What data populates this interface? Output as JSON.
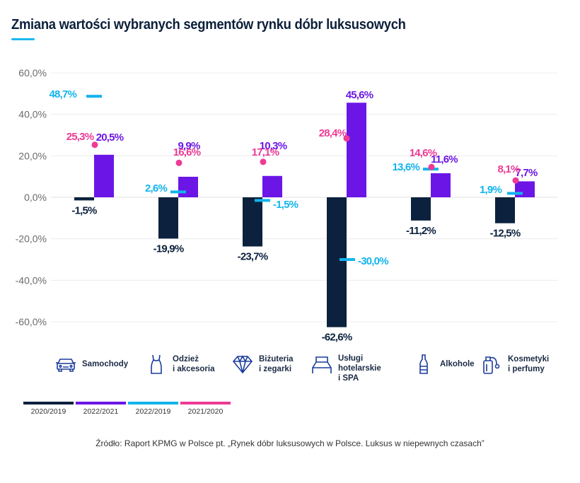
{
  "title": "Zmiana wartości wybranych segmentów rynku dóbr luksusowych",
  "colors": {
    "s2020_2019": "#0c213d",
    "s2022_2021": "#6b16e6",
    "s2022_2019": "#13b4ec",
    "s2021_2020": "#ee3a95",
    "grid": "#ececec",
    "icon": "#1c3c9c"
  },
  "categories": [
    {
      "label": "Samochody",
      "icon": "car-icon"
    },
    {
      "label": "Odzież\ni akcesoria",
      "icon": "dress-icon"
    },
    {
      "label": "Biżuteria\ni zegarki",
      "icon": "diamond-icon"
    },
    {
      "label": "Usługi\nhotelarskie\n i SPA",
      "icon": "bed-icon"
    },
    {
      "label": "Alkohole",
      "icon": "bottle-icon"
    },
    {
      "label": "Kosmetyki\ni perfumy",
      "icon": "perfume-icon"
    }
  ],
  "legend": [
    {
      "label": "2020/2019",
      "color": "#0c213d"
    },
    {
      "label": "2022/2021",
      "color": "#6b16e6"
    },
    {
      "label": "2022/2019",
      "color": "#13b4ec"
    },
    {
      "label": "2021/2020",
      "color": "#ee3a95"
    }
  ],
  "source": "Źródło: Raport KPMG w Polsce pt. „Rynek dóbr luksusowych w Polsce. Luksus w niepewnych czasach”",
  "chart_data": {
    "type": "bar",
    "title": "Zmiana wartości wybranych segmentów rynku dóbr luksusowych",
    "xlabel": "",
    "ylabel": "",
    "ylim": [
      -60,
      60
    ],
    "yticks": [
      60,
      40,
      20,
      0,
      -20,
      -40,
      -60
    ],
    "ytick_labels": [
      "60,0%",
      "40,0%",
      "20,0%",
      "0,0%",
      "-20,0%",
      "-40,0%",
      "-60,0%"
    ],
    "grid": true,
    "legend_position": "bottom-left",
    "categories": [
      "Samochody",
      "Odzież i akcesoria",
      "Biżuteria i zegarki",
      "Usługi hotelarskie i SPA",
      "Alkohole",
      "Kosmetyki i perfumy"
    ],
    "series": [
      {
        "name": "2020/2019",
        "mark": "bar",
        "values": [
          -1.5,
          -19.9,
          -23.7,
          -62.6,
          -11.2,
          -12.5
        ],
        "labels": [
          "-1,5%",
          "-19,9%",
          "-23,7%",
          "-62,6%",
          "-11,2%",
          "-12,5%"
        ]
      },
      {
        "name": "2022/2021",
        "mark": "bar",
        "values": [
          20.5,
          9.9,
          10.3,
          45.6,
          11.6,
          7.7
        ],
        "labels": [
          "20,5%",
          "9,9%",
          "10,3%",
          "45,6%",
          "11,6%",
          "7,7%"
        ]
      },
      {
        "name": "2022/2019",
        "mark": "dash",
        "values": [
          48.7,
          2.6,
          -1.5,
          -30.0,
          13.6,
          1.9
        ],
        "labels": [
          "48,7%",
          "2,6%",
          "-1,5%",
          "-30,0%",
          "13,6%",
          "1,9%"
        ]
      },
      {
        "name": "2021/2020",
        "mark": "dot",
        "values": [
          25.3,
          16.6,
          17.1,
          28.4,
          14.6,
          8.1
        ],
        "labels": [
          "25,3%",
          "16,6%",
          "17,1%",
          "28,4%",
          "14,6%",
          "8,1%"
        ]
      }
    ]
  }
}
